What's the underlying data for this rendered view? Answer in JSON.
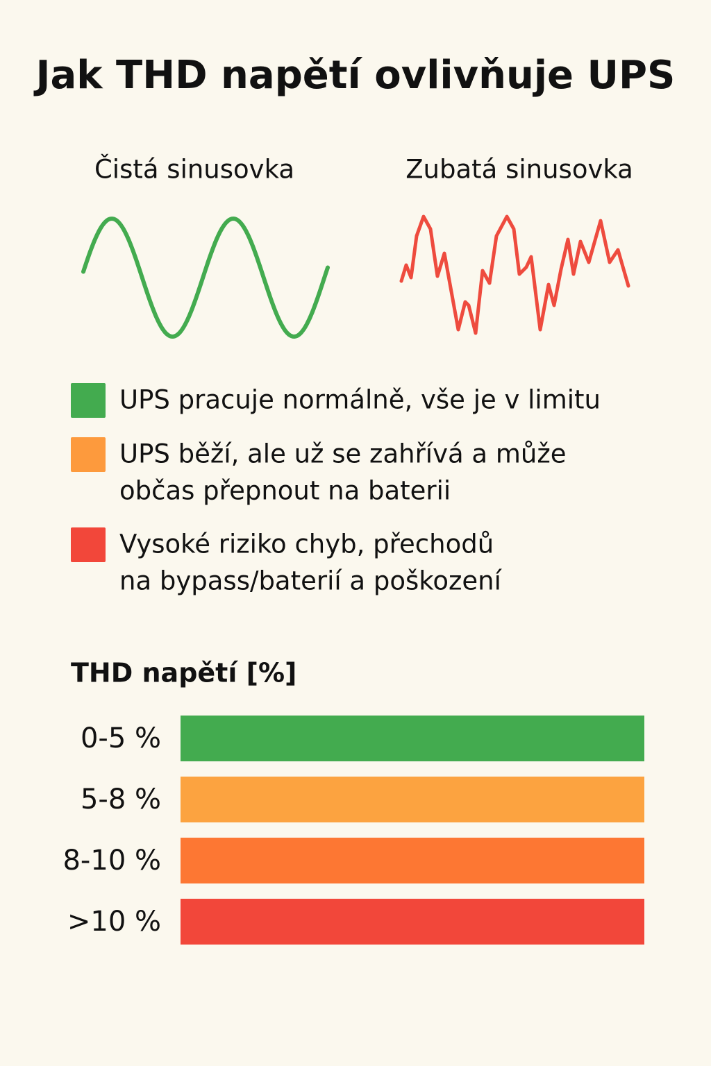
{
  "header": {
    "title": "Jak THD napětí ovlivňuje UPS"
  },
  "waves": [
    {
      "label": "Čistá sinusovka"
    },
    {
      "label": "Zubatá sinusovka"
    }
  ],
  "legend": [
    {
      "color": "#43ab4f",
      "lines": [
        "UPS pracuje normálně, vše je v limitu"
      ]
    },
    {
      "color": "#fd9a3d",
      "lines": [
        "UPS běží, ale už se zahřívá a může",
        "občas přepnout na baterii"
      ]
    },
    {
      "color": "#f2473a",
      "lines": [
        "Vysoké riziko chyb, přechodů",
        "na bypass/baterií a poškození"
      ]
    }
  ],
  "scale": {
    "title": "THD napětí [%]",
    "rows": [
      {
        "label": "0-5 %",
        "color": "#43ab4f"
      },
      {
        "label": "5-8 %",
        "color": "#fca340"
      },
      {
        "label": "8-10 %",
        "color": "#fd7733"
      },
      {
        "label": ">10 %",
        "color": "#f2473a"
      }
    ]
  }
}
